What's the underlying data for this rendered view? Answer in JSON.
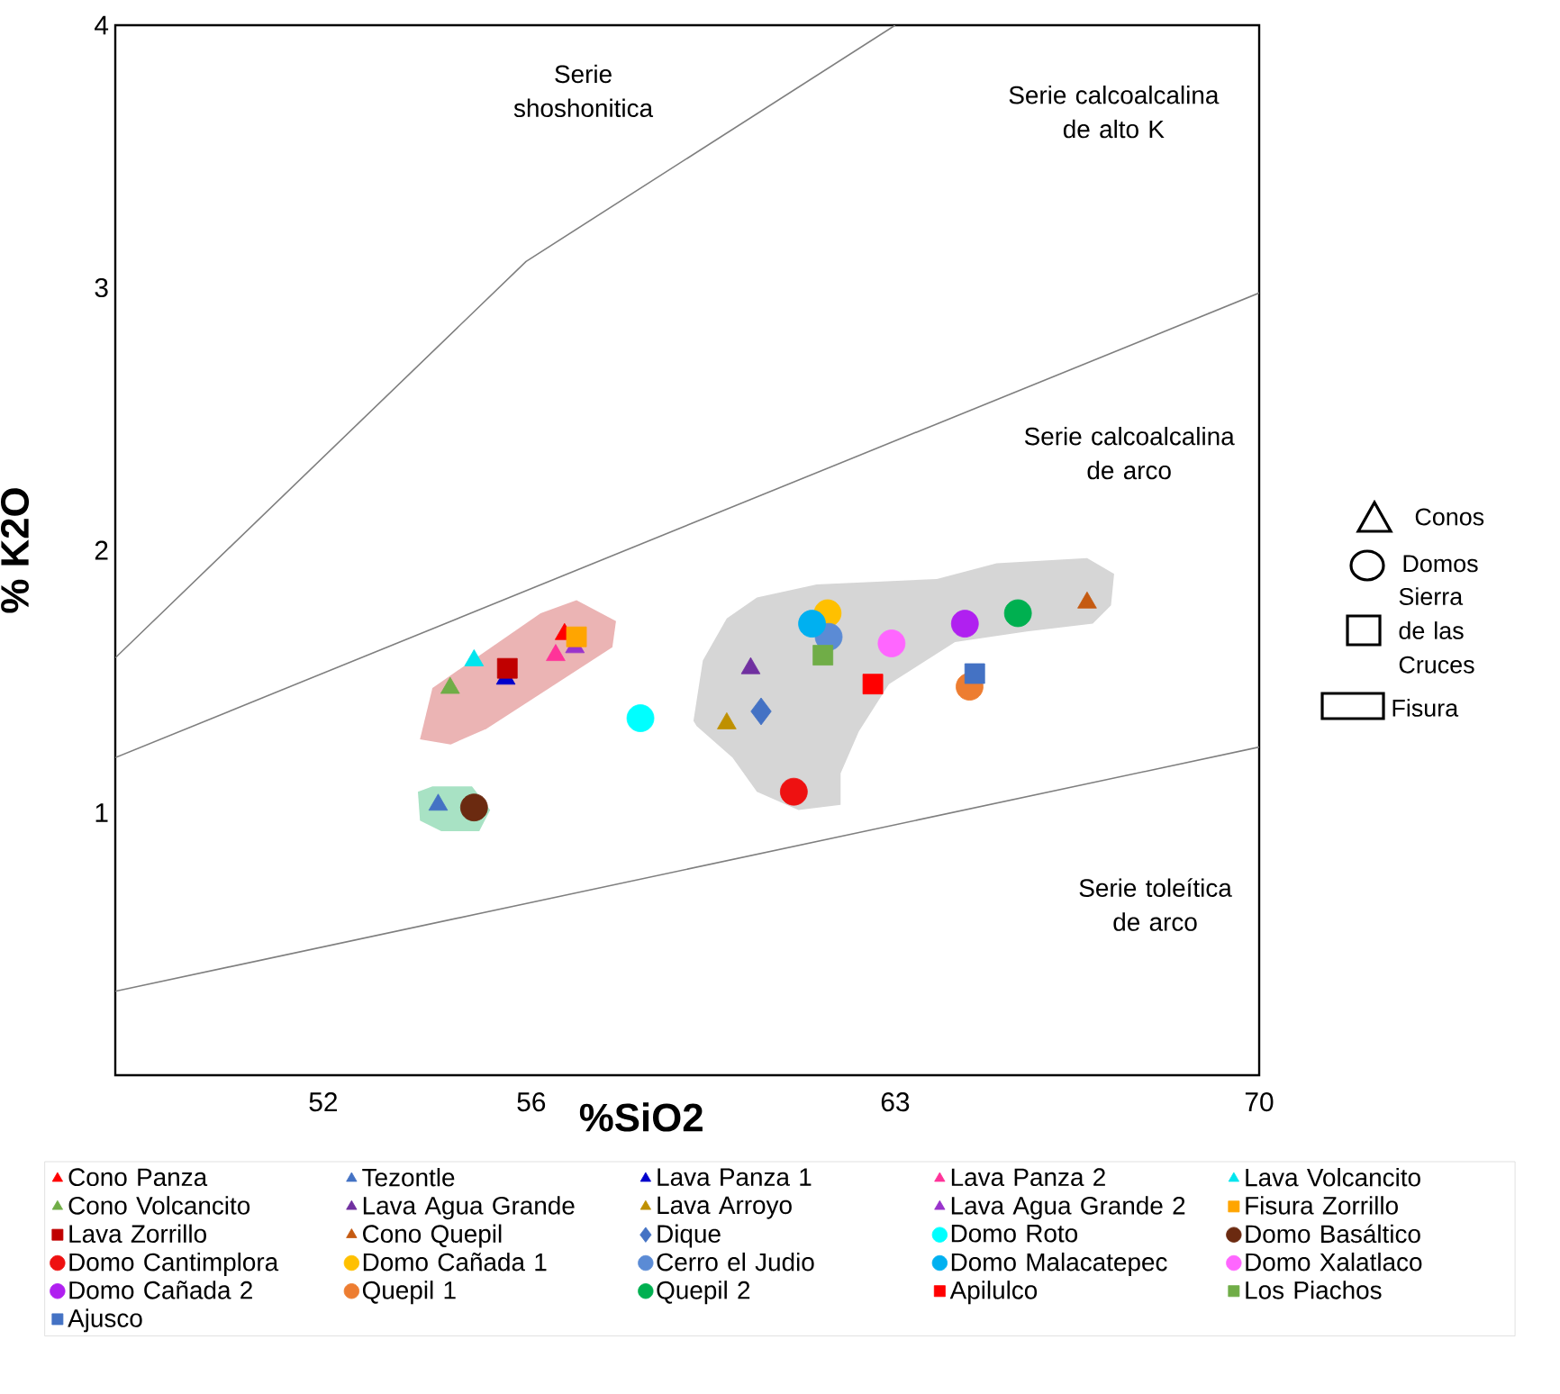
{
  "chart_data": {
    "type": "scatter",
    "xlabel": "%SiO2",
    "ylabel": "% K2O",
    "xlim": [
      48,
      70
    ],
    "ylim": [
      0,
      4
    ],
    "xticks": [
      52,
      56,
      63,
      70
    ],
    "yticks": [
      1,
      2,
      3,
      4
    ],
    "legend": "bottom",
    "annotations": [
      "Serie shoshonitica",
      "Serie calcoalcalina de alto K",
      "Serie calcoalcalina de arco",
      "Serie toleítica de arco",
      "Conos",
      "Domos",
      "Sierra de las Cruces",
      "Fisura"
    ],
    "series": [
      {
        "type": "line",
        "line_style": "solid",
        "color": "#7f7f7f",
        "x": [
          48,
          55.9,
          63.0
        ],
        "values": [
          1.59,
          3.1,
          4.0
        ]
      },
      {
        "type": "line",
        "line_style": "solid",
        "color": "#7f7f7f",
        "x": [
          48,
          70
        ],
        "values": [
          1.21,
          2.98
        ]
      },
      {
        "type": "line",
        "line_style": "solid",
        "color": "#7f7f7f",
        "x": [
          48,
          70
        ],
        "values": [
          0.32,
          1.25
        ]
      },
      {
        "type": "area",
        "color": "#ebb4b4",
        "x": [
          53.86,
          54.1,
          56.18,
          56.87,
          57.63,
          57.56,
          55.14,
          54.45
        ],
        "values": [
          1.28,
          1.475,
          1.76,
          1.81,
          1.73,
          1.63,
          1.32,
          1.26
        ]
      },
      {
        "type": "area",
        "color": "#a8e2c4",
        "x": [
          53.82,
          54.1,
          54.86,
          55.21,
          55.0,
          54.27,
          53.86
        ],
        "values": [
          1.08,
          1.1,
          1.1,
          1.01,
          0.93,
          0.93,
          0.97
        ]
      },
      {
        "type": "area",
        "color": "#d6d6d6",
        "x": [
          59.12,
          59.3,
          59.76,
          60.34,
          61.49,
          63.8,
          64.95,
          66.69,
          67.21,
          67.15,
          66.8,
          65.53,
          64.15,
          62.88,
          62.3,
          61.95,
          61.95,
          61.14,
          60.34,
          59.87,
          59.18
        ],
        "values": [
          1.35,
          1.58,
          1.74,
          1.82,
          1.87,
          1.89,
          1.95,
          1.97,
          1.91,
          1.79,
          1.72,
          1.69,
          1.65,
          1.49,
          1.31,
          1.15,
          1.03,
          1.01,
          1.08,
          1.21,
          1.33
        ]
      },
      {
        "name": "Cono Panza",
        "marker": "triangle",
        "color": "#ff0000",
        "x": [
          56.64
        ],
        "values": [
          1.68
        ]
      },
      {
        "name": "Tezontle",
        "marker": "triangle",
        "color": "#4472c4",
        "x": [
          54.21
        ],
        "values": [
          1.03
        ]
      },
      {
        "name": "Lava Panza 1",
        "marker": "triangle",
        "color": "#0000cc",
        "x": [
          55.51
        ],
        "values": [
          1.51
        ]
      },
      {
        "name": "Lava Panza 2",
        "marker": "triangle",
        "color": "#ff3399",
        "x": [
          56.47
        ],
        "values": [
          1.6
        ]
      },
      {
        "name": "Lava Volcancito",
        "marker": "triangle",
        "color": "#00e5ee",
        "x": [
          54.9
        ],
        "values": [
          1.58
        ]
      },
      {
        "name": "Cono Volcancito",
        "marker": "triangle",
        "color": "#70ad47",
        "x": [
          54.44
        ],
        "values": [
          1.475
        ]
      },
      {
        "name": "Lava Agua Grande",
        "marker": "triangle",
        "color": "#7030a0",
        "x": [
          60.22
        ],
        "values": [
          1.55
        ]
      },
      {
        "name": "Lava Arroyo",
        "marker": "triangle",
        "color": "#bf9000",
        "x": [
          59.76
        ],
        "values": [
          1.34
        ]
      },
      {
        "name": "Lava Agua Grande 2",
        "marker": "triangle",
        "color": "#9933cc",
        "x": [
          56.84
        ],
        "values": [
          1.63
        ]
      },
      {
        "name": "Fisura Zorrillo",
        "marker": "square",
        "color": "#ffa500",
        "x": [
          56.87
        ],
        "values": [
          1.67
        ]
      },
      {
        "name": "Lava Zorrillo",
        "marker": "square",
        "color": "#c00000",
        "x": [
          55.54
        ],
        "values": [
          1.55
        ]
      },
      {
        "name": "Cono Quepil",
        "marker": "triangle",
        "color": "#c55a11",
        "x": [
          66.69
        ],
        "values": [
          1.8
        ]
      },
      {
        "name": "Dique",
        "marker": "diamond",
        "color": "#4472c4",
        "x": [
          60.42
        ],
        "values": [
          1.386
        ]
      },
      {
        "name": "Domo Roto",
        "marker": "circle",
        "color": "#00ffff",
        "x": [
          58.1
        ],
        "values": [
          1.36
        ]
      },
      {
        "name": "Domo Basáltico",
        "marker": "circle",
        "color": "#6b2a10",
        "x": [
          54.9
        ],
        "values": [
          1.02
        ]
      },
      {
        "name": "Domo Cantimplora",
        "marker": "circle",
        "color": "#ee1111",
        "x": [
          61.05
        ],
        "values": [
          1.08
        ]
      },
      {
        "name": "Domo Cañada 1",
        "marker": "circle",
        "color": "#ffc000",
        "x": [
          61.7
        ],
        "values": [
          1.76
        ]
      },
      {
        "name": "Cerro el Judio",
        "marker": "circle",
        "color": "#5b8bd5",
        "x": [
          61.72
        ],
        "values": [
          1.67
        ]
      },
      {
        "name": "Domo Malacatepec",
        "marker": "circle",
        "color": "#00b0f0",
        "x": [
          61.4
        ],
        "values": [
          1.72
        ]
      },
      {
        "name": "Domo Xalatlaco",
        "marker": "circle",
        "color": "#ff66ff",
        "x": [
          62.93
        ],
        "values": [
          1.645
        ]
      },
      {
        "name": "Domo Cañada 2",
        "marker": "circle",
        "color": "#b020f0",
        "x": [
          64.34
        ],
        "values": [
          1.72
        ]
      },
      {
        "name": "Quepil 1",
        "marker": "circle",
        "color": "#ed7d31",
        "x": [
          64.43
        ],
        "values": [
          1.48
        ]
      },
      {
        "name": "Quepil 2",
        "marker": "circle",
        "color": "#00b050",
        "x": [
          65.36
        ],
        "values": [
          1.76
        ]
      },
      {
        "name": "Apilulco",
        "marker": "square",
        "color": "#ff0000",
        "x": [
          62.57
        ],
        "values": [
          1.49
        ]
      },
      {
        "name": "Los Piachos",
        "marker": "square",
        "color": "#70ad47",
        "x": [
          61.61
        ],
        "values": [
          1.6
        ]
      },
      {
        "name": "Ajusco",
        "marker": "square",
        "color": "#4472c4",
        "x": [
          64.53
        ],
        "values": [
          1.53
        ]
      }
    ]
  }
}
